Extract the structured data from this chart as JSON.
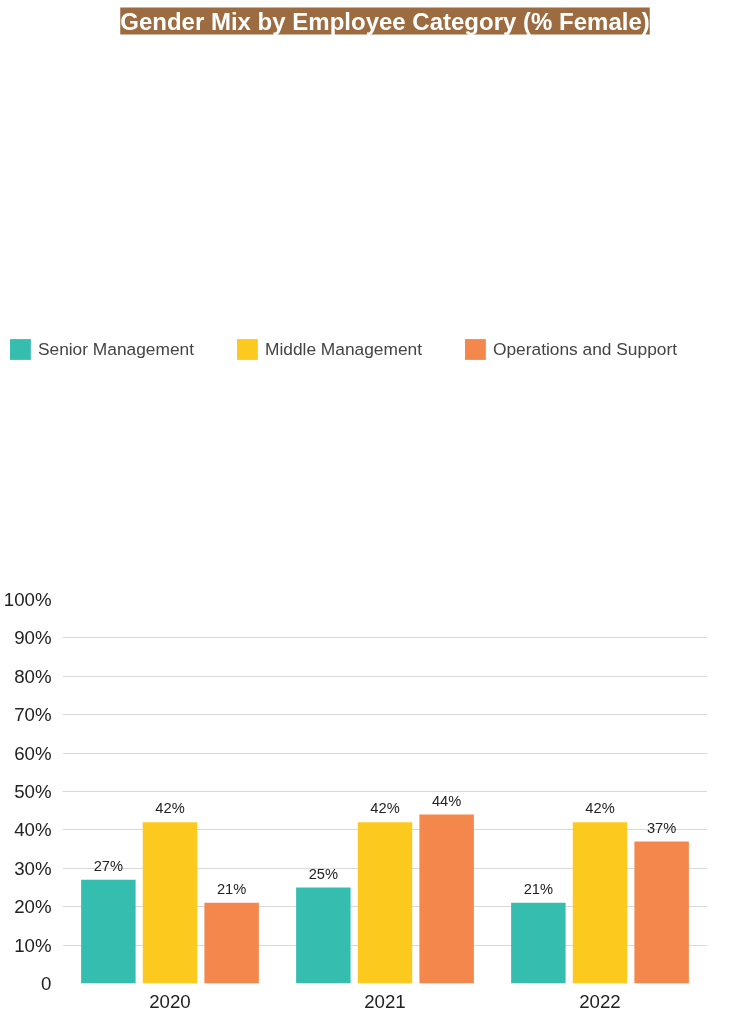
{
  "chart_data": {
    "type": "bar",
    "title": "Gender Mix by Employee Category (% Female)",
    "categories": [
      "2020",
      "2021",
      "2022"
    ],
    "series": [
      {
        "name": "Senior Management",
        "color": "#35bdb0",
        "values": [
          27,
          25,
          21
        ],
        "value_labels": [
          "27%",
          "25%",
          "21%"
        ]
      },
      {
        "name": "Middle Management",
        "color": "#fcc91f",
        "values": [
          42,
          42,
          42
        ],
        "value_labels": [
          "42%",
          "42%",
          "42%"
        ]
      },
      {
        "name": "Operations and Support",
        "color": "#f4874b",
        "values": [
          21,
          44,
          37
        ],
        "value_labels": [
          "21%",
          "44%",
          "37%"
        ]
      }
    ],
    "ylim": [
      0,
      100
    ],
    "yticks": [
      {
        "value": 0,
        "label": "0"
      },
      {
        "value": 10,
        "label": "10%"
      },
      {
        "value": 20,
        "label": "20%"
      },
      {
        "value": 30,
        "label": "30%"
      },
      {
        "value": 40,
        "label": "40%"
      },
      {
        "value": 50,
        "label": "50%"
      },
      {
        "value": 60,
        "label": "60%"
      },
      {
        "value": 70,
        "label": "70%"
      },
      {
        "value": 80,
        "label": "80%"
      },
      {
        "value": 90,
        "label": "90%"
      },
      {
        "value": 100,
        "label": "100%"
      }
    ],
    "grid": "y",
    "legend": "top"
  }
}
